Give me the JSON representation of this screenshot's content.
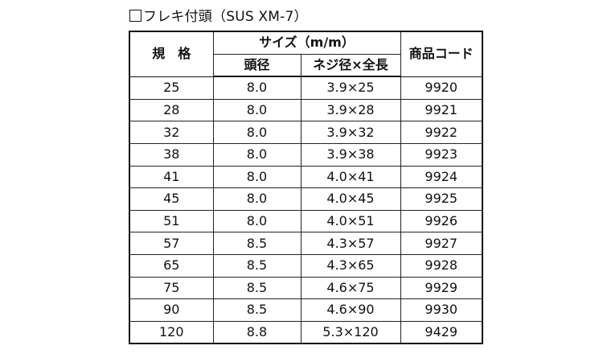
{
  "title": {
    "box_glyph": "□",
    "text": "フレキ付頭（SUS XM-7）"
  },
  "table": {
    "headers": {
      "spec": "規　格",
      "size_group": "サイズ（m/m）",
      "head_diameter": "頭径",
      "thread_length": "ネジ径×全長",
      "product_code": "商品コード"
    },
    "rows": [
      {
        "spec": "25",
        "head": "8.0",
        "thread": "3.9×25",
        "code": "9920"
      },
      {
        "spec": "28",
        "head": "8.0",
        "thread": "3.9×28",
        "code": "9921"
      },
      {
        "spec": "32",
        "head": "8.0",
        "thread": "3.9×32",
        "code": "9922"
      },
      {
        "spec": "38",
        "head": "8.0",
        "thread": "3.9×38",
        "code": "9923"
      },
      {
        "spec": "41",
        "head": "8.0",
        "thread": "4.0×41",
        "code": "9924"
      },
      {
        "spec": "45",
        "head": "8.0",
        "thread": "4.0×45",
        "code": "9925"
      },
      {
        "spec": "51",
        "head": "8.0",
        "thread": "4.0×51",
        "code": "9926"
      },
      {
        "spec": "57",
        "head": "8.5",
        "thread": "4.3×57",
        "code": "9927"
      },
      {
        "spec": "65",
        "head": "8.5",
        "thread": "4.3×65",
        "code": "9928"
      },
      {
        "spec": "75",
        "head": "8.5",
        "thread": "4.6×75",
        "code": "9929"
      },
      {
        "spec": "90",
        "head": "8.5",
        "thread": "4.6×90",
        "code": "9930"
      },
      {
        "spec": "120",
        "head": "8.8",
        "thread": "5.3×120",
        "code": "9429"
      }
    ]
  }
}
